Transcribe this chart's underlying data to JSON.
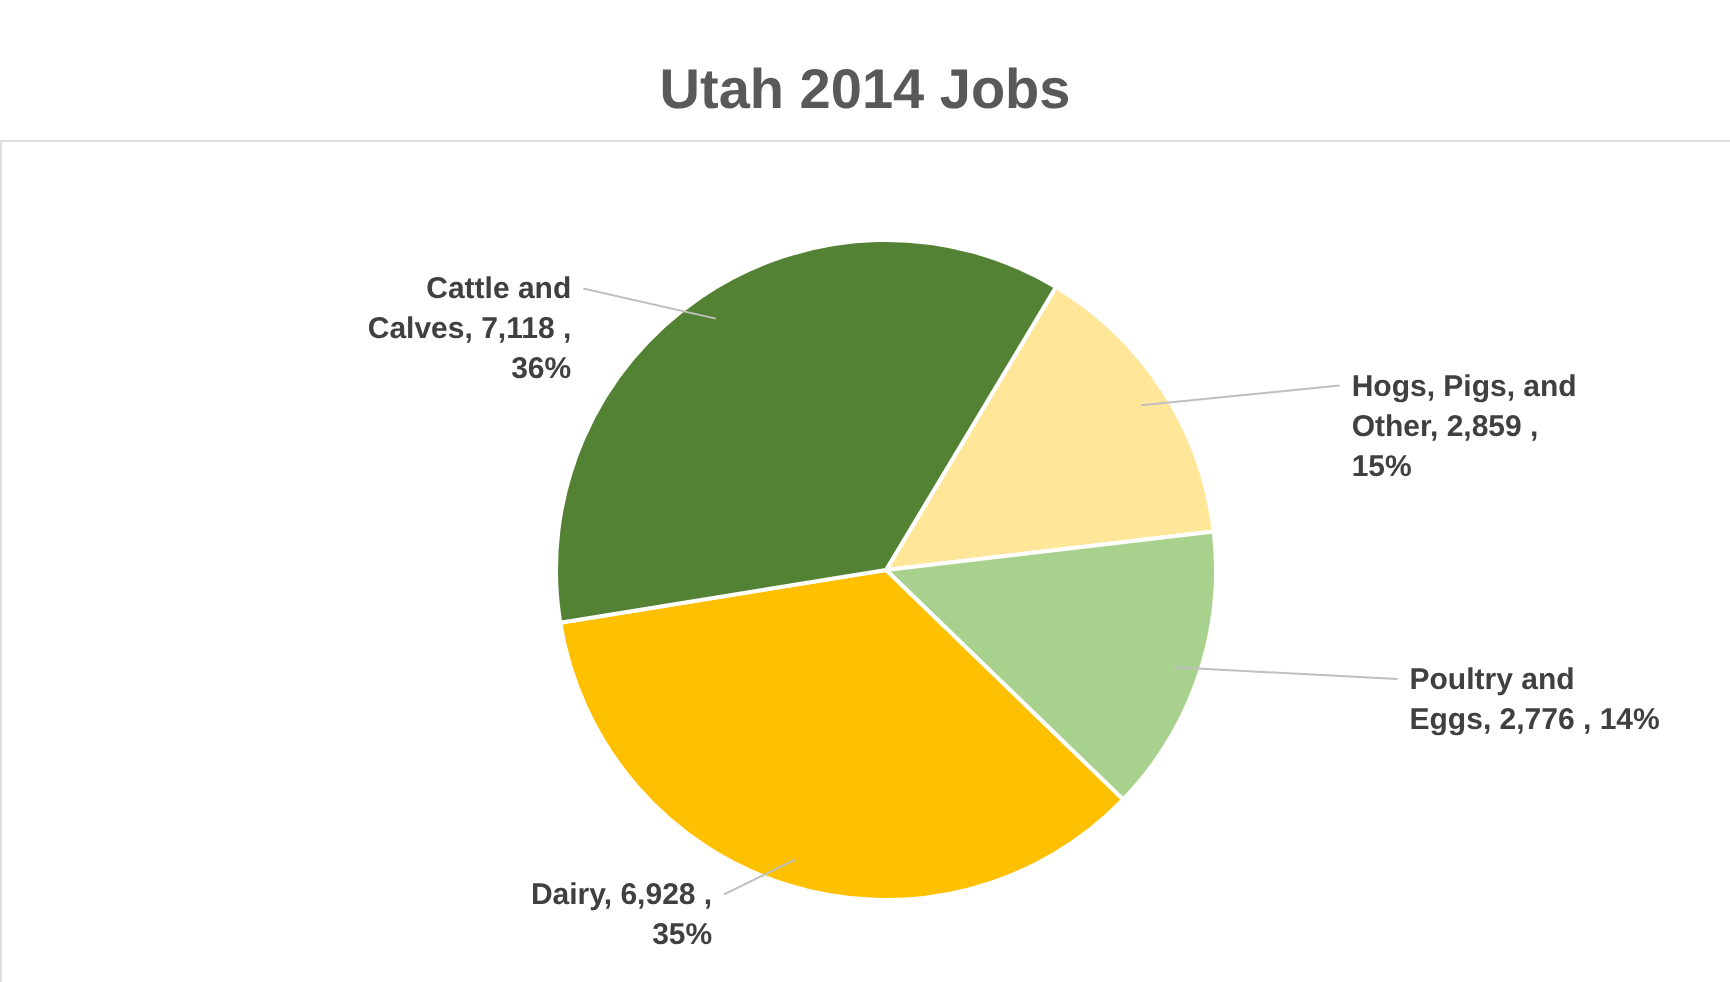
{
  "chart_data": {
    "type": "pie",
    "title": "Utah 2014 Jobs",
    "categories": [
      "Hogs, Pigs, and Other",
      "Poultry and Eggs",
      "Dairy",
      "Cattle and Calves"
    ],
    "values": [
      2859,
      2776,
      6928,
      7118
    ],
    "value_labels": [
      "2,859 , 15%",
      "2,776 , 14%",
      "6,928 , 35%",
      "7,118 , 36%"
    ],
    "colors": [
      "#ffe699",
      "#a9d18e",
      "#ffc000",
      "#548235"
    ],
    "legend": false
  }
}
